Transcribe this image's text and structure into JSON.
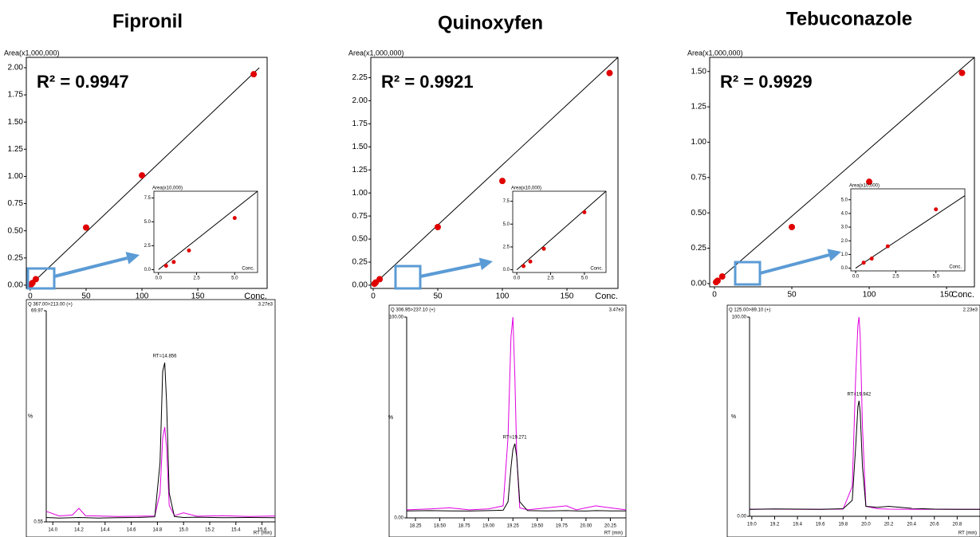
{
  "chart_data": [
    {
      "type": "scatter",
      "title": "Fipronil",
      "ylabel": "Area(x1,000,000)",
      "xlabel": "Conc.",
      "annotation": "R² = 0.9947",
      "color": "#e00000",
      "x": [
        0.5,
        1,
        2,
        5,
        50,
        100,
        200
      ],
      "values": [
        0.005,
        0.01,
        0.02,
        0.055,
        0.53,
        1.01,
        1.94
      ],
      "fit_x": [
        0,
        205
      ],
      "fit_y": [
        0,
        2.0
      ],
      "xlim": [
        -3.5,
        212
      ],
      "ylim": [
        -0.03,
        2.095
      ],
      "xticks": [
        0,
        50,
        100,
        150
      ],
      "yticks": [
        {
          "value": 0,
          "label": "0.00"
        },
        {
          "value": 0.25,
          "label": "0.25"
        },
        {
          "value": 0.5,
          "label": "0.50"
        },
        {
          "value": 0.75,
          "label": "0.75"
        },
        {
          "value": 1,
          "label": "1.00"
        },
        {
          "value": 1.25,
          "label": "1.25"
        },
        {
          "value": 1.5,
          "label": "1.50"
        },
        {
          "value": 1.75,
          "label": "1.75"
        },
        {
          "value": 2,
          "label": "2.00"
        }
      ]
    },
    {
      "type": "inset",
      "ylabel": "Area(x10,000)",
      "xlabel": "Conc.",
      "color": "#e00000",
      "x": [
        0.5,
        1,
        2,
        5
      ],
      "values": [
        0.4,
        0.8,
        2.0,
        5.4
      ],
      "fit_x": [
        0,
        6.5
      ],
      "fit_y": [
        0,
        8.2
      ],
      "xlim": [
        -0.3,
        6.5
      ],
      "ylim": [
        -0.3,
        8.2
      ],
      "xticks": [
        {
          "value": 0,
          "label": "0.0"
        },
        2.5,
        {
          "value": 5,
          "label": "5.0"
        }
      ],
      "yticks": [
        {
          "value": 0,
          "label": "0.0"
        },
        2.5,
        {
          "value": 5,
          "label": "5.0"
        },
        7.5
      ]
    },
    {
      "type": "line",
      "header": "Q 367.00>213.00 (+)",
      "intensity": "3.27e3",
      "ylabel": "%",
      "xlabel": "RT (min)",
      "peak_label": "RT=14.856",
      "x": [
        13.95,
        14.05,
        14.15,
        14.2,
        14.25,
        14.35,
        14.5,
        14.65,
        14.78,
        14.82,
        14.84,
        14.856,
        14.87,
        14.89,
        14.93,
        15.0,
        15.1,
        15.3,
        15.5,
        15.7
      ],
      "series": [
        {
          "color": "#e000e0",
          "values": [
            4,
            2.5,
            2.8,
            5,
            2.6,
            2.5,
            2.3,
            2.4,
            2.5,
            10,
            28,
            31.7,
            25,
            6,
            2.6,
            3.5,
            2.4,
            2.6,
            2.3,
            2.5
          ]
        },
        {
          "color": "#000000",
          "values": [
            2.0,
            1.8,
            1.9,
            2.0,
            1.9,
            1.8,
            1.9,
            2.0,
            2.2,
            20,
            50,
            52.9,
            40,
            10,
            2.3,
            2.0,
            2.1,
            1.9,
            2.0,
            1.9
          ]
        }
      ],
      "xlim": [
        13.95,
        15.7
      ],
      "ylim": [
        0.55,
        69.97
      ],
      "xticks": [
        {
          "value": 14,
          "label": "14.0"
        },
        14.2,
        14.4,
        14.6,
        14.8,
        {
          "value": 15,
          "label": "15.0"
        },
        15.2,
        15.4,
        15.6
      ],
      "yticks": [
        0.55,
        69.97
      ]
    },
    {
      "type": "scatter",
      "title": "Quinoxyfen",
      "ylabel": "Area(x1,000,000)",
      "xlabel": "Conc.",
      "annotation": "R² = 0.9921",
      "color": "#e00000",
      "x": [
        1,
        2,
        5,
        50,
        100,
        183
      ],
      "values": [
        0.015,
        0.03,
        0.065,
        0.63,
        1.13,
        2.3
      ],
      "fit_x": [
        0,
        189.5
      ],
      "fit_y": [
        0,
        2.47
      ],
      "xlim": [
        -1.85,
        189.5
      ],
      "ylim": [
        -0.035,
        2.47
      ],
      "xticks": [
        0,
        50,
        100,
        150
      ],
      "yticks": [
        {
          "value": 0,
          "label": "0.00"
        },
        {
          "value": 0.25,
          "label": "0.25"
        },
        {
          "value": 0.5,
          "label": "0.50"
        },
        {
          "value": 0.75,
          "label": "0.75"
        },
        {
          "value": 1,
          "label": "1.00"
        },
        {
          "value": 1.25,
          "label": "1.25"
        },
        {
          "value": 1.5,
          "label": "1.50"
        },
        {
          "value": 1.75,
          "label": "1.75"
        },
        {
          "value": 2,
          "label": "2.00"
        },
        {
          "value": 2.25,
          "label": "2.25"
        }
      ]
    },
    {
      "type": "inset",
      "ylabel": "Area(x10,000)",
      "xlabel": "Conc.",
      "color": "#e00000",
      "x": [
        0.5,
        1,
        2,
        5
      ],
      "values": [
        0.4,
        0.9,
        2.3,
        6.3
      ],
      "fit_x": [
        0,
        6.6
      ],
      "fit_y": [
        0,
        8.6
      ],
      "xlim": [
        -0.3,
        6.6
      ],
      "ylim": [
        -0.3,
        8.6
      ],
      "xticks": [
        {
          "value": 0,
          "label": "0.0"
        },
        2.5,
        {
          "value": 5,
          "label": "5.0"
        }
      ],
      "yticks": [
        {
          "value": 0,
          "label": "0.0"
        },
        2.5,
        {
          "value": 5,
          "label": "5.0"
        },
        7.5
      ]
    },
    {
      "type": "line",
      "header": "Q 306.95>237.10 (+)",
      "intensity": "3.47e3",
      "ylabel": "%",
      "xlabel": "RT (min)",
      "peak_label": "RT=19.271",
      "x": [
        18.16,
        18.4,
        18.6,
        18.8,
        19.0,
        19.15,
        19.2,
        19.23,
        19.25,
        19.27,
        19.29,
        19.32,
        19.4,
        19.6,
        19.8,
        19.9,
        20.0,
        20.1,
        20.25,
        20.41
      ],
      "series": [
        {
          "color": "#e000e0",
          "values": [
            4,
            4.5,
            5,
            4,
            4.5,
            6,
            40,
            90,
            100,
            70,
            30,
            5,
            4,
            5,
            6,
            4,
            5,
            6,
            5,
            4
          ]
        },
        {
          "color": "#000000",
          "values": [
            3.5,
            3.6,
            3.5,
            3.4,
            3.6,
            3.8,
            8,
            25,
            34,
            37,
            30,
            8,
            3.6,
            3.5,
            3.6,
            3.5,
            3.4,
            3.6,
            3.5,
            3.5
          ]
        }
      ],
      "xlim": [
        18.16,
        20.41
      ],
      "ylim": [
        0,
        100
      ],
      "xticks": [
        18.25,
        {
          "value": 18.5,
          "label": "18.50"
        },
        18.75,
        {
          "value": 19,
          "label": "19.00"
        },
        19.25,
        {
          "value": 19.5,
          "label": "19.50"
        },
        19.75,
        {
          "value": 20,
          "label": "20.00"
        },
        20.25
      ],
      "yticks": [
        {
          "value": 0,
          "label": "0.00"
        },
        {
          "value": 100,
          "label": "100.00"
        }
      ]
    },
    {
      "type": "scatter",
      "title": "Tebuconazole",
      "ylabel": "Area(x1,000,000)",
      "xlabel": "Conc.",
      "annotation": "R² = 0.9929",
      "color": "#e00000",
      "x": [
        1,
        2,
        5,
        50,
        100,
        160
      ],
      "values": [
        0.01,
        0.02,
        0.05,
        0.4,
        0.72,
        1.49
      ],
      "fit_x": [
        0,
        168
      ],
      "fit_y": [
        0,
        1.6
      ],
      "xlim": [
        -3.1,
        168
      ],
      "ylim": [
        -0.023,
        1.6
      ],
      "xticks": [
        0,
        50,
        100,
        150
      ],
      "yticks": [
        {
          "value": 0,
          "label": "0.00"
        },
        {
          "value": 0.25,
          "label": "0.25"
        },
        {
          "value": 0.5,
          "label": "0.50"
        },
        {
          "value": 0.75,
          "label": "0.75"
        },
        {
          "value": 1,
          "label": "1.00"
        },
        {
          "value": 1.25,
          "label": "1.25"
        },
        {
          "value": 1.5,
          "label": "1.50"
        }
      ]
    },
    {
      "type": "inset",
      "ylabel": "Area(x10,000)",
      "xlabel": "Conc.",
      "color": "#e00000",
      "x": [
        0.5,
        1,
        2,
        5
      ],
      "values": [
        0.4,
        0.7,
        1.6,
        4.3
      ],
      "fit_x": [
        0,
        6.8
      ],
      "fit_y": [
        0,
        5.3
      ],
      "xlim": [
        -0.3,
        6.8
      ],
      "ylim": [
        -0.2,
        5.8
      ],
      "xticks": [
        {
          "value": 0,
          "label": "0.0"
        },
        2.5,
        {
          "value": 5,
          "label": "5.0"
        }
      ],
      "yticks": [
        {
          "value": 0,
          "label": "0.0"
        },
        {
          "value": 1,
          "label": "1.0"
        },
        {
          "value": 2,
          "label": "2.0"
        },
        {
          "value": 3,
          "label": "3.0"
        },
        {
          "value": 4,
          "label": "4.0"
        },
        {
          "value": 5,
          "label": "5.0"
        }
      ]
    },
    {
      "type": "line",
      "header": "Q 125.00>89.10 (+)",
      "intensity": "2.23e3",
      "ylabel": "%",
      "xlabel": "RT (min)",
      "peak_label": "RT=19.942",
      "x": [
        18.98,
        19.2,
        19.4,
        19.6,
        19.8,
        19.88,
        19.91,
        19.93,
        19.94,
        19.95,
        19.97,
        20.0,
        20.1,
        20.2,
        20.4,
        20.6,
        20.8,
        21.0
      ],
      "series": [
        {
          "color": "#e000e0",
          "values": [
            3.5,
            3.6,
            3.5,
            3.5,
            3.6,
            15,
            70,
            96,
            100,
            90,
            45,
            5,
            3.8,
            3.6,
            3.5,
            3.5,
            3.5,
            3.5
          ]
        },
        {
          "color": "#000000",
          "values": [
            3.5,
            3.7,
            3.6,
            3.5,
            3.8,
            8,
            35,
            55,
            58,
            52,
            25,
            5,
            4.5,
            5,
            4,
            3.6,
            3.5,
            3.5
          ]
        }
      ],
      "xlim": [
        18.98,
        21.0
      ],
      "ylim": [
        0,
        100
      ],
      "xticks": [
        {
          "value": 19,
          "label": "19.0"
        },
        19.2,
        19.4,
        19.6,
        19.8,
        {
          "value": 20,
          "label": "20.0"
        },
        20.2,
        20.4,
        20.6,
        20.8
      ],
      "yticks": [
        {
          "value": 0,
          "label": "0.00"
        },
        {
          "value": 100,
          "label": "100.00"
        }
      ]
    }
  ]
}
